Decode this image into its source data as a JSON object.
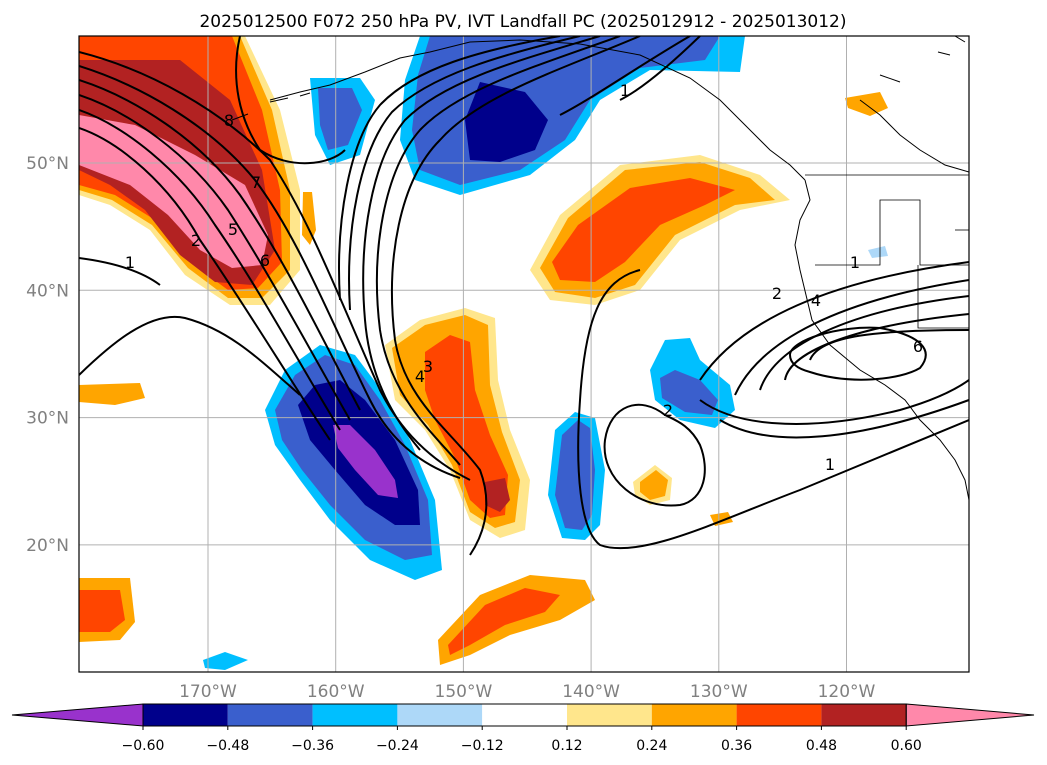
{
  "title": "2025012500 F072 250 hPa PV, IVT Landfall PC (2025012912 - 2025013012)",
  "map": {
    "lat_labels": [
      {
        "label": "50°N",
        "lat": 50
      },
      {
        "label": "40°N",
        "lat": 40
      },
      {
        "label": "30°N",
        "lat": 30
      },
      {
        "label": "20°N",
        "lat": 20
      }
    ],
    "lon_labels": [
      {
        "label": "170°W",
        "lon": -170
      },
      {
        "label": "160°W",
        "lon": -160
      },
      {
        "label": "150°W",
        "lon": -150
      },
      {
        "label": "140°W",
        "lon": -140
      },
      {
        "label": "130°W",
        "lon": -130
      },
      {
        "label": "120°W",
        "lon": -120
      }
    ],
    "contour_labels": [
      "1",
      "2",
      "5",
      "6",
      "7",
      "8",
      "1",
      "3",
      "4",
      "1",
      "2",
      "4",
      "6",
      "2",
      "1"
    ],
    "gridlines": true
  },
  "colorbar": {
    "colors": [
      "#9932cc",
      "#00008b",
      "#3a5fcd",
      "#00bfff",
      "#add8f8",
      "#ffffff",
      "#ffe68c",
      "#ffa500",
      "#ff4500",
      "#b22222",
      "#ff88aa"
    ],
    "tick_labels": [
      "−0.60",
      "−0.48",
      "−0.36",
      "−0.24",
      "−0.12",
      "0.12",
      "0.24",
      "0.36",
      "0.48",
      "0.60"
    ]
  }
}
